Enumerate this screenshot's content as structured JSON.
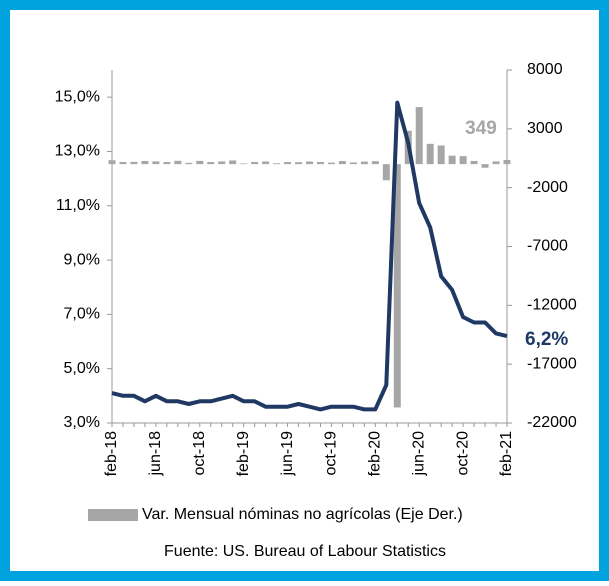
{
  "chart_data": {
    "type": "bar_line",
    "categories": [
      "feb-18",
      null,
      null,
      null,
      "jun-18",
      null,
      null,
      null,
      "oct-18",
      null,
      null,
      null,
      "feb-19",
      null,
      null,
      null,
      "jun-19",
      null,
      null,
      null,
      "oct-19",
      null,
      null,
      null,
      "feb-20",
      null,
      null,
      null,
      "jun-20",
      null,
      null,
      null,
      "oct-20",
      null,
      null,
      null,
      "feb-21"
    ],
    "series": [
      {
        "type": "bar",
        "name": "Var. Mensual nóminas no agrícolas (Eje Der.)",
        "color": "#a6a6a6",
        "axis": "y2",
        "values": [
          330,
          182,
          196,
          270,
          235,
          178,
          282,
          108,
          277,
          176,
          227,
          312,
          56,
          189,
          224,
          75,
          178,
          166,
          219,
          180,
          128,
          266,
          145,
          214,
          251,
          -1373,
          -20679,
          2833,
          4846,
          1726,
          1583,
          716,
          680,
          264,
          -306,
          233,
          349
        ],
        "value_labels": [
          null,
          null,
          null,
          null,
          null,
          null,
          null,
          null,
          null,
          null,
          null,
          null,
          null,
          null,
          null,
          null,
          null,
          null,
          null,
          null,
          null,
          null,
          null,
          null,
          null,
          null,
          null,
          null,
          null,
          null,
          null,
          null,
          null,
          null,
          null,
          null,
          "349"
        ]
      },
      {
        "type": "line",
        "color": "#1f3864",
        "axis": "y",
        "values": [
          4.1,
          4.0,
          4.0,
          3.8,
          4.0,
          3.8,
          3.8,
          3.7,
          3.8,
          3.8,
          3.9,
          4.0,
          3.8,
          3.8,
          3.6,
          3.6,
          3.6,
          3.7,
          3.6,
          3.5,
          3.6,
          3.6,
          3.6,
          3.5,
          3.5,
          4.4,
          14.8,
          13.3,
          11.1,
          10.2,
          8.4,
          7.9,
          6.9,
          6.7,
          6.7,
          6.3,
          6.2
        ],
        "value_labels": [
          null,
          null,
          null,
          null,
          null,
          null,
          null,
          null,
          null,
          null,
          null,
          null,
          null,
          null,
          null,
          null,
          null,
          null,
          null,
          null,
          null,
          null,
          null,
          null,
          null,
          null,
          null,
          null,
          null,
          null,
          null,
          null,
          null,
          null,
          null,
          null,
          "6,2%"
        ]
      }
    ],
    "ylim": [
      3,
      16
    ],
    "yticks": [
      {
        "value": 3,
        "label": "3,0%"
      },
      {
        "value": 5,
        "label": "5,0%"
      },
      {
        "value": 7,
        "label": "7,0%"
      },
      {
        "value": 9,
        "label": "9,0%"
      },
      {
        "value": 11,
        "label": "11,0%"
      },
      {
        "value": 13,
        "label": "13,0%"
      },
      {
        "value": 15,
        "label": "15,0%"
      }
    ],
    "y2lim": [
      -22000,
      8000
    ],
    "y2ticks": [
      8000,
      3000,
      -2000,
      -7000,
      -12000,
      -17000,
      -22000
    ],
    "source": "Fuente: US. Bureau of Labour Statistics"
  }
}
